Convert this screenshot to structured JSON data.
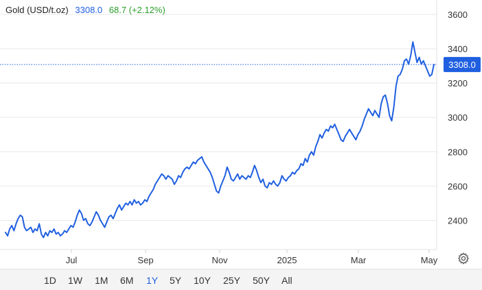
{
  "header": {
    "name": "Gold (USD/t.oz)",
    "price": "3308.0",
    "change": "68.7 (+2.12%)"
  },
  "ranges": [
    "1D",
    "1W",
    "1M",
    "6M",
    "1Y",
    "5Y",
    "10Y",
    "25Y",
    "50Y",
    "All"
  ],
  "active_range": "1Y",
  "colors": {
    "line": "#1f5fe0",
    "up": "#2a9d2a",
    "grid": "#e8e8e8",
    "label": "#333333"
  },
  "settings_icon": "gear-icon",
  "chart_data": {
    "type": "line",
    "title": "",
    "xlabel": "",
    "ylabel": "",
    "x_tick_labels": [
      "Jul",
      "Sep",
      "Nov",
      "2025",
      "Mar",
      "May"
    ],
    "y_tick_labels": [
      "2400",
      "2600",
      "2800",
      "3000",
      "3200",
      "3400",
      "3600"
    ],
    "ylim": [
      2230,
      3660
    ],
    "current_value_label": "3308.0",
    "grid": "horizontal",
    "series": [
      {
        "values": [
          2330,
          2310,
          2350,
          2370,
          2340,
          2380,
          2410,
          2430,
          2420,
          2360,
          2340,
          2350,
          2360,
          2330,
          2350,
          2340,
          2380,
          2320,
          2300,
          2330,
          2310,
          2340,
          2330,
          2350,
          2320,
          2330,
          2310,
          2320,
          2340,
          2330,
          2350,
          2370,
          2360,
          2390,
          2430,
          2460,
          2440,
          2400,
          2410,
          2380,
          2370,
          2390,
          2420,
          2450,
          2430,
          2400,
          2380,
          2360,
          2390,
          2420,
          2430,
          2410,
          2440,
          2470,
          2490,
          2460,
          2480,
          2500,
          2490,
          2510,
          2490,
          2520,
          2500,
          2510,
          2490,
          2500,
          2520,
          2510,
          2540,
          2560,
          2580,
          2610,
          2630,
          2650,
          2670,
          2660,
          2640,
          2660,
          2650,
          2640,
          2610,
          2630,
          2660,
          2650,
          2680,
          2700,
          2710,
          2700,
          2720,
          2740,
          2730,
          2750,
          2760,
          2770,
          2740,
          2720,
          2700,
          2680,
          2650,
          2610,
          2570,
          2560,
          2600,
          2630,
          2660,
          2710,
          2680,
          2640,
          2630,
          2650,
          2670,
          2640,
          2660,
          2650,
          2640,
          2660,
          2650,
          2680,
          2720,
          2690,
          2650,
          2620,
          2640,
          2600,
          2590,
          2620,
          2610,
          2630,
          2610,
          2600,
          2620,
          2660,
          2640,
          2630,
          2650,
          2660,
          2680,
          2670,
          2690,
          2700,
          2730,
          2720,
          2760,
          2740,
          2780,
          2800,
          2780,
          2830,
          2860,
          2900,
          2880,
          2910,
          2930,
          2920,
          2950,
          2940,
          2960,
          2930,
          2900,
          2870,
          2860,
          2890,
          2910,
          2930,
          2910,
          2890,
          2870,
          2900,
          2920,
          2950,
          2990,
          3020,
          3050,
          3030,
          3010,
          3040,
          3020,
          3000,
          3080,
          3120,
          3130,
          3080,
          3010,
          2980,
          3060,
          3180,
          3240,
          3250,
          3280,
          3330,
          3340,
          3310,
          3360,
          3440,
          3380,
          3320,
          3350,
          3310,
          3330,
          3300,
          3270,
          3240,
          3250,
          3308
        ]
      }
    ]
  }
}
